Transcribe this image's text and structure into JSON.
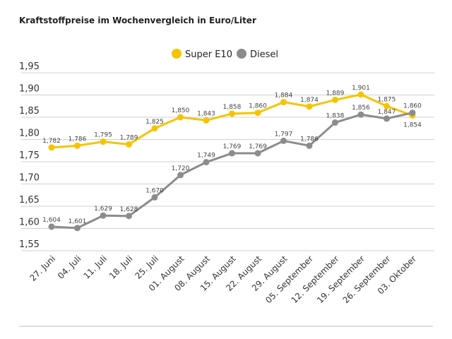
{
  "chart_data": {
    "type": "line",
    "title": "Kraftstoffpreise im Wochenvergleich in Euro/Liter",
    "categories": [
      "27. Juni",
      "04. Juli",
      "11. Juli",
      "18. Juli",
      "25. Juli",
      "01. August",
      "08. August",
      "15. August",
      "22. August",
      "29. August",
      "05. September",
      "12. September",
      "19. September",
      "26. September",
      "03. Oktober"
    ],
    "series": [
      {
        "name": "Super E10",
        "color": "#f5c400",
        "values": [
          1.782,
          1.786,
          1.795,
          1.789,
          1.825,
          1.85,
          1.843,
          1.858,
          1.86,
          1.884,
          1.874,
          1.889,
          1.901,
          1.875,
          1.854
        ],
        "labels": [
          "1,782",
          "1,786",
          "1,795",
          "1,789",
          "1,825",
          "1,850",
          "1,843",
          "1,858",
          "1,860",
          "1,884",
          "1,874",
          "1,889",
          "1,901",
          "1,875",
          "1,854"
        ]
      },
      {
        "name": "Diesel",
        "color": "#8c8c8c",
        "values": [
          1.604,
          1.601,
          1.629,
          1.628,
          1.67,
          1.72,
          1.749,
          1.769,
          1.769,
          1.797,
          1.786,
          1.838,
          1.856,
          1.847,
          1.86
        ],
        "labels": [
          "1,604",
          "1,601",
          "1,629",
          "1,628",
          "1,670",
          "1,720",
          "1,749",
          "1,769",
          "1,769",
          "1,797",
          "1,786",
          "1,838",
          "1,856",
          "1,847",
          "1,860"
        ]
      }
    ],
    "ylim": [
      1.55,
      1.95
    ],
    "yticks": [
      "1,95",
      "1,90",
      "1,85",
      "1,80",
      "1,75",
      "1,70",
      "1,65",
      "1,60",
      "1,55"
    ],
    "grid": true,
    "legend": "top-center"
  }
}
